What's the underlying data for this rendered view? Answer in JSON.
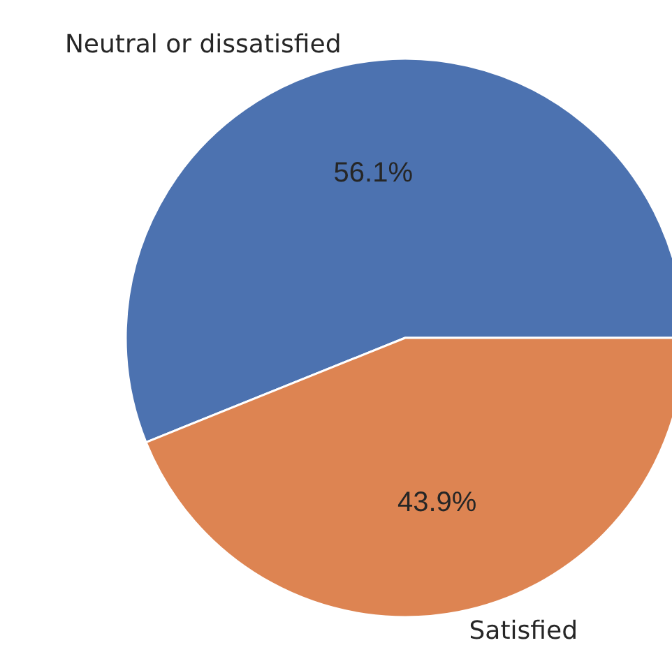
{
  "chart_data": {
    "type": "pie",
    "categories": [
      "Neutral or dissatisfied",
      "Satisfied"
    ],
    "values": [
      56.1,
      43.9
    ],
    "colors": [
      "#4c72b0",
      "#dd8452"
    ],
    "value_labels": [
      "56.1%",
      "43.9%"
    ],
    "legend": false
  }
}
